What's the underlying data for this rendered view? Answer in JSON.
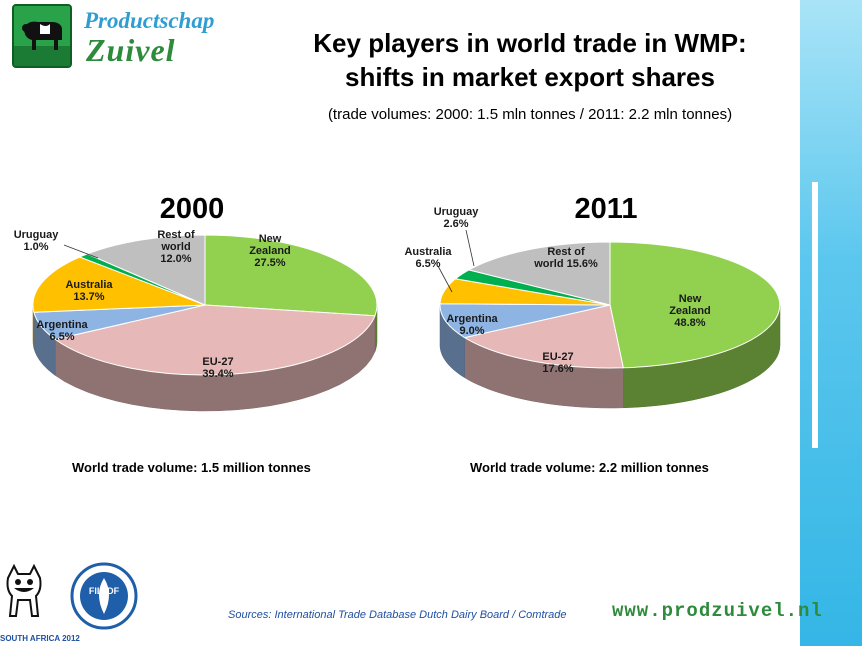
{
  "header": {
    "logo_line1": "Productschap",
    "logo_line2": "Zuivel",
    "title_line1": "Key players in world trade in WMP:",
    "title_line2": "shifts in market export shares",
    "subtitle": "(trade volumes: 2000: 1.5 mln tonnes / 2011: 2.2 mln tonnes)"
  },
  "chart_data": [
    {
      "type": "pie",
      "title": "2000",
      "slices": [
        {
          "name": "New Zealand",
          "value": 27.5,
          "label_lines": [
            "New",
            "Zealand",
            "27.5%"
          ],
          "color": "#92d050"
        },
        {
          "name": "EU-27",
          "value": 39.4,
          "label_lines": [
            "EU-27",
            "39.4%"
          ],
          "color": "#e6b9b8"
        },
        {
          "name": "Argentina",
          "value": 6.5,
          "label_lines": [
            "Argentina",
            "6.5%"
          ],
          "color": "#8eb4e3"
        },
        {
          "name": "Australia",
          "value": 13.7,
          "label_lines": [
            "Australia",
            "13.7%"
          ],
          "color": "#ffc000"
        },
        {
          "name": "Uruguay",
          "value": 1.0,
          "label_lines": [
            "Uruguay",
            "1.0%"
          ],
          "color": "#00b050"
        },
        {
          "name": "Rest of world",
          "value": 12.0,
          "label_lines": [
            "Rest of",
            "world",
            "12.0%"
          ],
          "color": "#bfbfbf"
        }
      ],
      "caption": "World trade volume: 1.5 million tonnes"
    },
    {
      "type": "pie",
      "title": "2011",
      "slices": [
        {
          "name": "New Zealand",
          "value": 48.8,
          "label_lines": [
            "New",
            "Zealand",
            "48.8%"
          ],
          "color": "#92d050"
        },
        {
          "name": "EU-27",
          "value": 17.6,
          "label_lines": [
            "EU-27",
            "17.6%"
          ],
          "color": "#e6b9b8"
        },
        {
          "name": "Argentina",
          "value": 9.0,
          "label_lines": [
            "Argentina",
            "9.0%"
          ],
          "color": "#8eb4e3"
        },
        {
          "name": "Australia",
          "value": 6.5,
          "label_lines": [
            "Australia",
            "6.5%"
          ],
          "color": "#ffc000"
        },
        {
          "name": "Uruguay",
          "value": 2.6,
          "label_lines": [
            "Uruguay",
            "2.6%"
          ],
          "color": "#00b050"
        },
        {
          "name": "Rest of world",
          "value": 15.6,
          "label_lines": [
            "Rest of",
            "world 15.6%"
          ],
          "color": "#bfbfbf"
        }
      ],
      "caption": "World trade volume: 2.2 million tonnes"
    }
  ],
  "footer": {
    "sources": "Sources: International Trade Database Dutch Dairy Board / Comtrade",
    "website": "www.prodzuivel.nl",
    "summit_logo_text": "SOUTH AFRICA 2012",
    "fil_logo_text": "FIL IDF"
  },
  "colors": {
    "accent_blue": "#34b6e6",
    "brand_green": "#2e8b3c"
  }
}
